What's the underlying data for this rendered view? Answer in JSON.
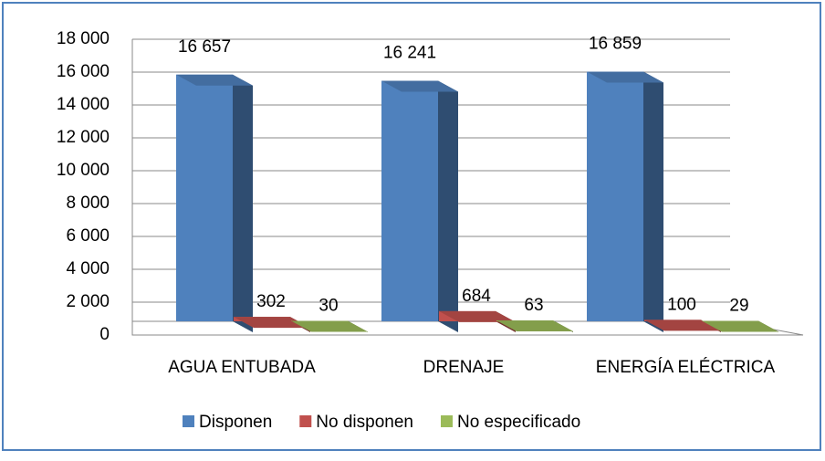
{
  "chart_data": {
    "type": "bar3d",
    "categories": [
      "AGUA ENTUBADA",
      "DRENAJE",
      "ENERGÍA ELÉCTRICA"
    ],
    "series": [
      {
        "name": "Disponen",
        "color": "#4f81bd",
        "values": [
          16657,
          16241,
          16859
        ],
        "value_labels": [
          "16 657",
          "16 241",
          "16 859"
        ]
      },
      {
        "name": "No disponen",
        "color": "#c0504d",
        "values": [
          302,
          684,
          100
        ]
      },
      {
        "name": "No especificado",
        "color": "#9bbb59",
        "values": [
          30,
          63,
          29
        ]
      }
    ],
    "ylim": [
      0,
      18000
    ],
    "yticks": [
      0,
      {
        "value": 2000,
        "label": "2 000"
      },
      {
        "value": 4000,
        "label": "4 000"
      },
      {
        "value": 6000,
        "label": "6 000"
      },
      {
        "value": 8000,
        "label": "8 000"
      },
      {
        "value": 10000,
        "label": "10 000"
      },
      {
        "value": 12000,
        "label": "12 000"
      },
      {
        "value": 14000,
        "label": "14 000"
      },
      {
        "value": 16000,
        "label": "16 000"
      },
      {
        "value": 18000,
        "label": "18 000"
      }
    ],
    "grid": true,
    "legend": "bottom"
  }
}
